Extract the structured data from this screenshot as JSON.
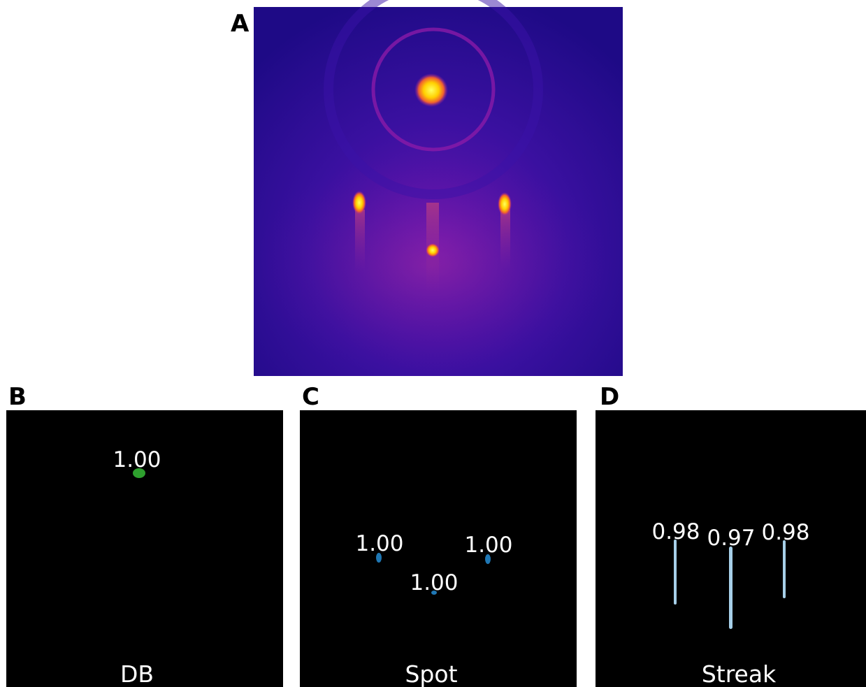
{
  "panels": [
    {
      "label": "A"
    },
    {
      "label": "B",
      "caption": "DB",
      "detections": [
        {
          "score": "1.00"
        }
      ]
    },
    {
      "label": "C",
      "caption": "Spot",
      "detections": [
        {
          "score": "1.00"
        },
        {
          "score": "1.00"
        },
        {
          "score": "1.00"
        }
      ]
    },
    {
      "label": "D",
      "caption": "Streak",
      "detections": [
        {
          "score": "0.98"
        },
        {
          "score": "0.97"
        },
        {
          "score": "0.98"
        }
      ]
    }
  ]
}
